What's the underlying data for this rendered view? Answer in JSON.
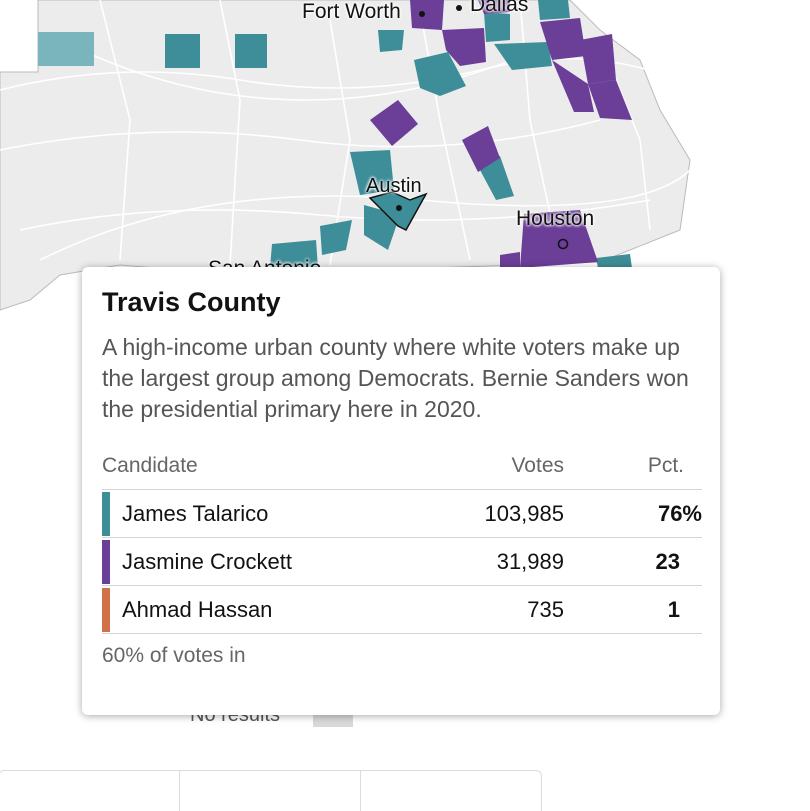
{
  "colors": {
    "talarico": "#3d8e99",
    "talarico_light": "#7ab5bd",
    "crockett": "#6b3e98",
    "hassan": "#d2704a",
    "no_results": "#d9d9d9",
    "land": "#ececec",
    "roads": "#ffffff"
  },
  "map": {
    "cities": [
      {
        "name": "Fort Worth"
      },
      {
        "name": "Dallas"
      },
      {
        "name": "Austin"
      },
      {
        "name": "Houston"
      },
      {
        "name": "San Antonio"
      }
    ],
    "legend": {
      "no_results_label": "No results"
    }
  },
  "tooltip": {
    "county": "Travis County",
    "description": "A high-income urban county where white voters make up the largest group among Democrats. Bernie Sanders won the presidential primary here in 2020.",
    "headers": {
      "candidate": "Candidate",
      "votes": "Votes",
      "pct": "Pct."
    },
    "rows": [
      {
        "name": "James Talarico",
        "votes": "103,985",
        "pct": "76%"
      },
      {
        "name": "Jasmine Crockett",
        "votes": "31,989",
        "pct": "23"
      },
      {
        "name": "Ahmad Hassan",
        "votes": "735",
        "pct": "1"
      }
    ],
    "footer": "60% of votes in"
  }
}
